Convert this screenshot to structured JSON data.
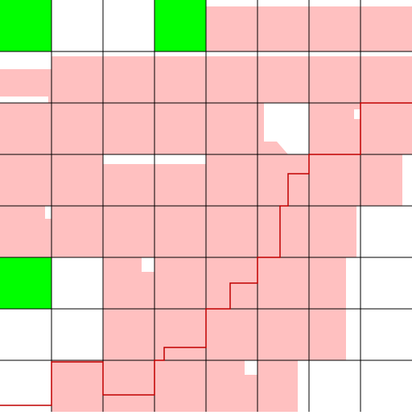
{
  "colors": {
    "background": "#ffffff",
    "region_fill": "#ffc0c0",
    "goal_cell": "#00ff00",
    "grid_line": "#000000",
    "path_line": "#c00000"
  },
  "grid": {
    "columns": 8,
    "rows": 8
  },
  "green_cells": [
    {
      "col": 0,
      "row": 0
    },
    {
      "col": 3,
      "row": 0
    },
    {
      "col": 0,
      "row": 5
    }
  ]
}
